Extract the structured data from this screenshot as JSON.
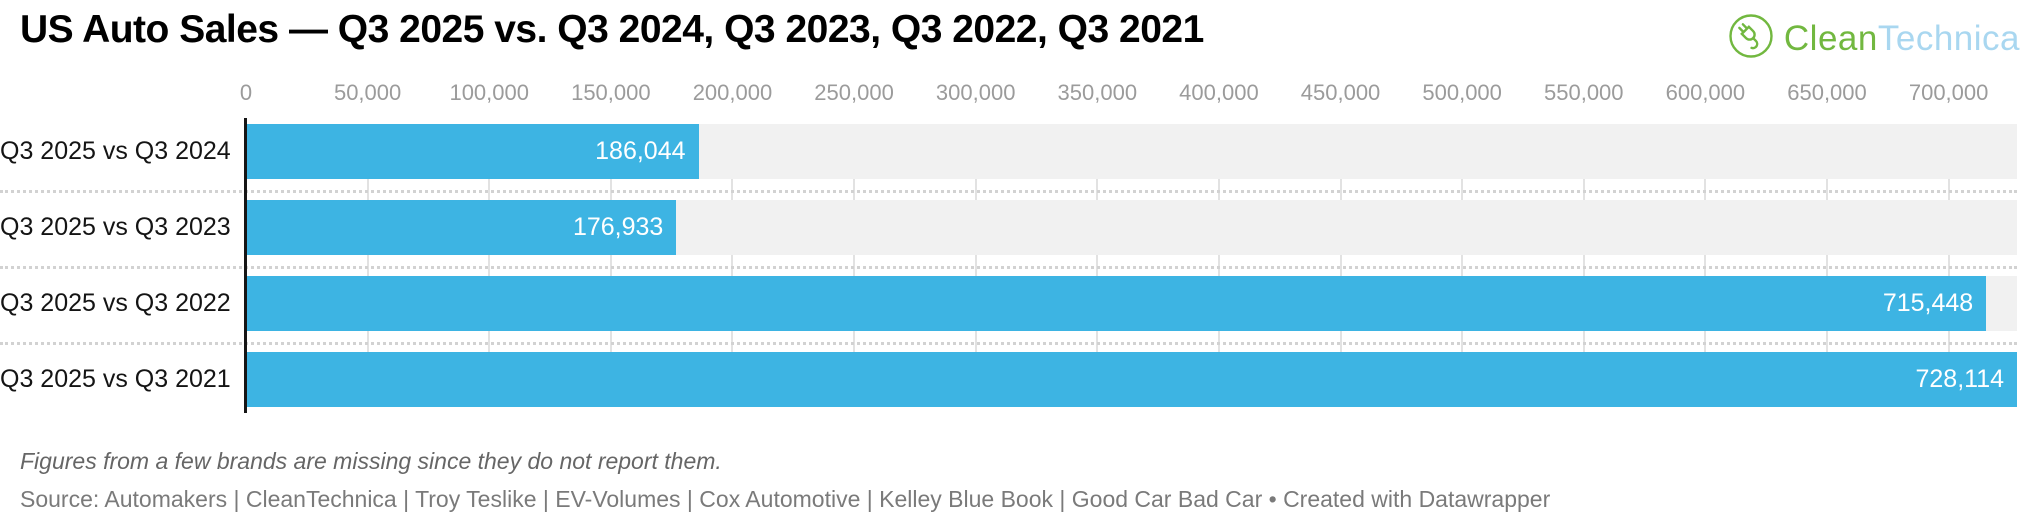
{
  "title": "US Auto Sales — Q3 2025 vs. Q3 2024, Q3 2023, Q3 2022, Q3 2021",
  "logo": {
    "icon": "ev-plug-circle-icon",
    "text_primary": "Clean",
    "text_secondary": "Technica",
    "color_primary": "#72b840",
    "color_secondary": "#a9d7f0"
  },
  "chart_data": {
    "type": "bar",
    "orientation": "horizontal",
    "title": "US Auto Sales — Q3 2025 vs. Q3 2024, Q3 2023, Q3 2022, Q3 2021",
    "categories": [
      "Q3 2025 vs Q3 2024",
      "Q3 2025 vs Q3 2023",
      "Q3 2025 vs Q3 2022",
      "Q3 2025 vs Q3 2021"
    ],
    "values": [
      186044,
      176933,
      715448,
      728114
    ],
    "value_labels": [
      "186,044",
      "176,933",
      "715,448",
      "728,114"
    ],
    "x_ticks": [
      0,
      50000,
      100000,
      150000,
      200000,
      250000,
      300000,
      350000,
      400000,
      450000,
      500000,
      550000,
      600000,
      650000,
      700000
    ],
    "x_tick_labels": [
      "0",
      "50,000",
      "100,000",
      "150,000",
      "200,000",
      "250,000",
      "300,000",
      "350,000",
      "400,000",
      "450,000",
      "500,000",
      "550,000",
      "600,000",
      "650,000",
      "700,000"
    ],
    "xlim": [
      0,
      728114
    ],
    "grid": true,
    "legend": "none",
    "bar_color": "#3db4e3",
    "band_color": "#f1f1f1",
    "value_label_color": "#ffffff"
  },
  "footnote": "Figures from a few brands are missing since they do not report them.",
  "source": "Source: Automakers | CleanTechnica | Troy Teslike | EV-Volumes | Cox Automotive | Kelley Blue Book | Good Car Bad Car • Created with Datawrapper"
}
